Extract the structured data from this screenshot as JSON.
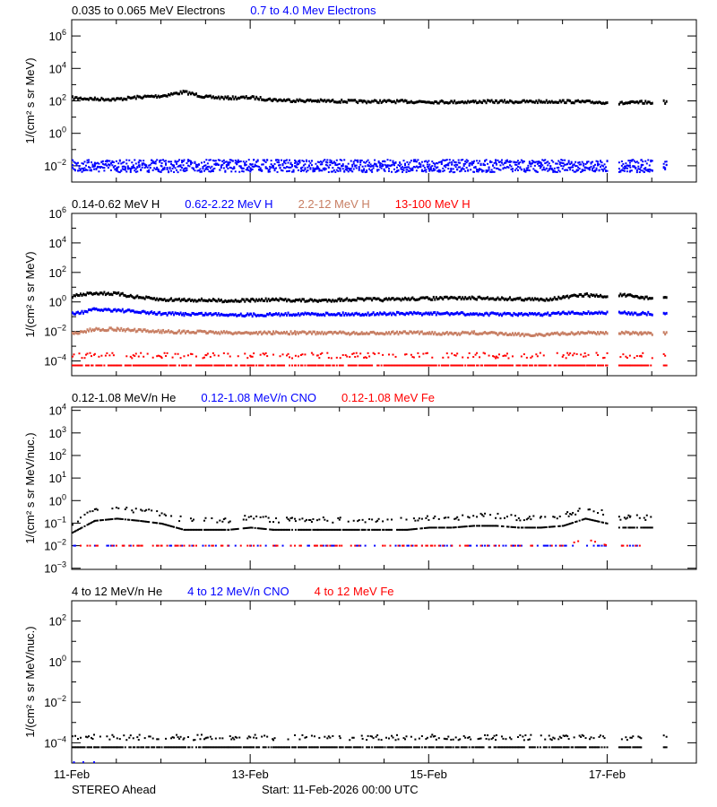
{
  "footer": {
    "spacecraft": "STEREO Ahead",
    "start": "Start: 11-Feb-2026 00:00 UTC"
  },
  "colors": {
    "black": "#000000",
    "blue": "#0000ff",
    "brown": "#c87f64",
    "red": "#ff0000"
  },
  "chart_data": [
    {
      "type": "scatter",
      "ylabel": "1/(cm² s sr MeV)",
      "yscale": "log",
      "ylim": [
        0.001,
        10000000.0
      ],
      "yticks": [
        1000000.0,
        10000.0,
        100.0,
        1.0,
        0.01
      ],
      "xlim": [
        "2026-02-11T00:00",
        "2026-02-18T00:00"
      ],
      "xticks": [
        "11-Feb",
        "13-Feb",
        "15-Feb",
        "17-Feb"
      ],
      "x": [
        "2026-02-11T00:00",
        "2026-02-11T06:00",
        "2026-02-11T12:00",
        "2026-02-11T18:00",
        "2026-02-12T00:00",
        "2026-02-12T06:00",
        "2026-02-12T12:00",
        "2026-02-12T18:00",
        "2026-02-13T00:00",
        "2026-02-13T06:00",
        "2026-02-13T12:00",
        "2026-02-13T18:00",
        "2026-02-14T00:00",
        "2026-02-14T06:00",
        "2026-02-14T12:00",
        "2026-02-14T18:00",
        "2026-02-15T00:00",
        "2026-02-15T06:00",
        "2026-02-15T12:00",
        "2026-02-15T18:00",
        "2026-02-16T00:00",
        "2026-02-16T06:00",
        "2026-02-16T12:00",
        "2026-02-16T18:00",
        "2026-02-17T00:00",
        "2026-02-17T01:00",
        "2026-02-17T03:00",
        "2026-02-17T06:00",
        "2026-02-17T09:00",
        "2026-02-17T12:00",
        "2026-02-17T13:00",
        "2026-02-17T15:00",
        "2026-02-17T16:00"
      ],
      "series": [
        {
          "name": "0.035 to 0.065 MeV Electrons",
          "color": "#000000",
          "style": "line",
          "values": [
            150,
            130,
            125,
            170,
            200,
            350,
            170,
            150,
            160,
            115,
            105,
            100,
            95,
            90,
            92,
            90,
            88,
            85,
            88,
            90,
            88,
            90,
            92,
            85,
            80,
            null,
            70,
            75,
            80,
            80,
            null,
            85,
            80
          ]
        },
        {
          "name": "0.7 to 4.0 Mev Electrons",
          "color": "#0000ff",
          "style": "scatter",
          "values": [
            0.011,
            0.011,
            0.011,
            0.011,
            0.011,
            0.011,
            0.011,
            0.011,
            0.011,
            0.011,
            0.011,
            0.011,
            0.011,
            0.011,
            0.011,
            0.011,
            0.011,
            0.011,
            0.011,
            0.011,
            0.011,
            0.011,
            0.011,
            0.011,
            0.011,
            null,
            0.011,
            0.011,
            0.011,
            0.011,
            null,
            0.011,
            0.011
          ]
        }
      ]
    },
    {
      "type": "scatter",
      "ylabel": "1/(cm² s sr MeV)",
      "yscale": "log",
      "ylim": [
        1e-05,
        1000000.0
      ],
      "yticks": [
        1000000.0,
        10000.0,
        100.0,
        1.0,
        0.01,
        0.0001
      ],
      "xlim": [
        "2026-02-11T00:00",
        "2026-02-18T00:00"
      ],
      "xticks": [
        "11-Feb",
        "13-Feb",
        "15-Feb",
        "17-Feb"
      ],
      "x": [
        "2026-02-11T00:00",
        "2026-02-11T06:00",
        "2026-02-11T12:00",
        "2026-02-11T18:00",
        "2026-02-12T00:00",
        "2026-02-12T06:00",
        "2026-02-12T12:00",
        "2026-02-12T18:00",
        "2026-02-13T00:00",
        "2026-02-13T06:00",
        "2026-02-13T12:00",
        "2026-02-13T18:00",
        "2026-02-14T00:00",
        "2026-02-14T06:00",
        "2026-02-14T12:00",
        "2026-02-14T18:00",
        "2026-02-15T00:00",
        "2026-02-15T06:00",
        "2026-02-15T12:00",
        "2026-02-15T18:00",
        "2026-02-16T00:00",
        "2026-02-16T06:00",
        "2026-02-16T12:00",
        "2026-02-16T18:00",
        "2026-02-17T00:00",
        "2026-02-17T01:00",
        "2026-02-17T03:00",
        "2026-02-17T06:00",
        "2026-02-17T09:00",
        "2026-02-17T12:00",
        "2026-02-17T13:00",
        "2026-02-17T15:00",
        "2026-02-17T16:00"
      ],
      "series": [
        {
          "name": "0.14-0.62 MeV H",
          "color": "#000000",
          "style": "line",
          "values": [
            2.5,
            4,
            3.5,
            2,
            1.4,
            1.4,
            1.3,
            1.2,
            1.3,
            1.4,
            1.3,
            1.2,
            1.4,
            1.5,
            1.4,
            1.6,
            1.7,
            1.8,
            1.8,
            1.7,
            1.6,
            1.4,
            2,
            3,
            2.2,
            null,
            3,
            2.5,
            2,
            1.8,
            null,
            2,
            2
          ]
        },
        {
          "name": "0.62-2.22 MeV H",
          "color": "#0000ff",
          "style": "line",
          "values": [
            0.15,
            0.3,
            0.28,
            0.2,
            0.16,
            0.15,
            0.15,
            0.14,
            0.13,
            0.14,
            0.15,
            0.15,
            0.15,
            0.15,
            0.16,
            0.16,
            0.16,
            0.16,
            0.15,
            0.15,
            0.14,
            0.14,
            0.17,
            0.18,
            0.18,
            null,
            0.18,
            0.17,
            0.16,
            0.16,
            null,
            0.15,
            0.15
          ]
        },
        {
          "name": "2.2-12 MeV H",
          "color": "#c87f64",
          "style": "line",
          "values": [
            0.007,
            0.014,
            0.014,
            0.011,
            0.01,
            0.009,
            0.009,
            0.008,
            0.008,
            0.008,
            0.008,
            0.008,
            0.008,
            0.007,
            0.008,
            0.008,
            0.008,
            0.007,
            0.008,
            0.007,
            0.006,
            0.006,
            0.007,
            0.008,
            0.008,
            null,
            0.008,
            0.008,
            0.007,
            0.007,
            null,
            0.007,
            0.007
          ]
        },
        {
          "name": "13-100 MeV H",
          "color": "#ff0000",
          "style": "quantized",
          "values": [
            0.0001,
            0.0001,
            0.0001,
            0.0001,
            0.0001,
            0.0001,
            0.0001,
            0.0001,
            0.0001,
            0.0001,
            0.0001,
            0.0001,
            0.0001,
            0.0001,
            0.0001,
            0.0001,
            0.0001,
            0.0001,
            0.0001,
            0.0001,
            0.0001,
            0.0001,
            0.0001,
            0.0001,
            0.0001,
            null,
            0.0001,
            0.0001,
            0.0001,
            0.0001,
            null,
            0.0001,
            0.0001
          ]
        }
      ]
    },
    {
      "type": "scatter",
      "ylabel": "1/(cm² s sr MeV/nuc.)",
      "yscale": "log",
      "ylim": [
        0.00089,
        14000.0
      ],
      "yticks": [
        10000.0,
        1000.0,
        100.0,
        10.0,
        1.0,
        0.1,
        0.01,
        0.001
      ],
      "xlim": [
        "2026-02-11T00:00",
        "2026-02-18T00:00"
      ],
      "xticks": [
        "11-Feb",
        "13-Feb",
        "15-Feb",
        "17-Feb"
      ],
      "x": [
        "2026-02-11T00:00",
        "2026-02-11T06:00",
        "2026-02-11T12:00",
        "2026-02-11T18:00",
        "2026-02-12T00:00",
        "2026-02-12T06:00",
        "2026-02-12T12:00",
        "2026-02-12T18:00",
        "2026-02-13T00:00",
        "2026-02-13T06:00",
        "2026-02-13T12:00",
        "2026-02-13T18:00",
        "2026-02-14T00:00",
        "2026-02-14T06:00",
        "2026-02-14T12:00",
        "2026-02-14T18:00",
        "2026-02-15T00:00",
        "2026-02-15T06:00",
        "2026-02-15T12:00",
        "2026-02-15T18:00",
        "2026-02-16T00:00",
        "2026-02-16T06:00",
        "2026-02-16T12:00",
        "2026-02-16T18:00",
        "2026-02-17T00:00",
        "2026-02-17T01:00",
        "2026-02-17T03:00",
        "2026-02-17T06:00",
        "2026-02-17T09:00",
        "2026-02-17T12:00",
        "2026-02-17T13:00",
        "2026-02-17T15:00",
        "2026-02-17T16:00"
      ],
      "series": [
        {
          "name": "0.12-1.08 MeV/n He",
          "color": "#000000",
          "style": "quantized",
          "values": [
            0.06,
            0.2,
            0.25,
            0.2,
            0.15,
            0.08,
            0.08,
            0.08,
            0.1,
            0.08,
            0.08,
            0.08,
            0.08,
            0.08,
            0.08,
            0.08,
            0.1,
            0.1,
            0.12,
            0.12,
            0.1,
            0.1,
            0.12,
            0.25,
            0.15,
            null,
            0.1,
            0.1,
            0.1,
            0.1,
            null,
            null,
            0.08
          ]
        },
        {
          "name": "0.12-1.08 MeV/n CNO",
          "color": "#0000ff",
          "style": "sparse",
          "values": [
            0.01,
            0.01,
            0.01,
            0.01,
            0.01,
            0.01,
            0.01,
            0.01,
            0.01,
            0.01,
            0.01,
            0.01,
            0.01,
            0.01,
            0.01,
            0.01,
            0.01,
            0.01,
            0.01,
            0.01,
            0.01,
            0.01,
            0.01,
            0.01,
            0.01,
            null,
            0.01,
            0.01,
            0.01,
            null,
            null,
            null,
            null
          ]
        },
        {
          "name": "0.12-1.08 MeV Fe",
          "color": "#ff0000",
          "style": "sparse",
          "values": [
            0.01,
            0.01,
            0.01,
            0.01,
            0.01,
            0.01,
            0.01,
            0.01,
            0.01,
            0.01,
            0.01,
            0.01,
            0.01,
            0.01,
            0.01,
            0.01,
            0.01,
            0.01,
            0.01,
            0.01,
            0.01,
            0.01,
            0.01,
            0.02,
            0.01,
            null,
            0.01,
            0.01,
            0.01,
            null,
            null,
            null,
            null
          ]
        }
      ]
    },
    {
      "type": "scatter",
      "ylabel": "1/(cm² s sr MeV/nuc.)",
      "yscale": "log",
      "ylim": [
        1e-05,
        1000.0
      ],
      "yticks": [
        100.0,
        1.0,
        0.01,
        0.0001
      ],
      "xlim": [
        "2026-02-11T00:00",
        "2026-02-18T00:00"
      ],
      "xticks": [
        "11-Feb",
        "13-Feb",
        "15-Feb",
        "17-Feb"
      ],
      "x": [
        "2026-02-11T00:00",
        "2026-02-11T06:00",
        "2026-02-11T12:00",
        "2026-02-11T18:00",
        "2026-02-12T00:00",
        "2026-02-12T06:00",
        "2026-02-12T12:00",
        "2026-02-12T18:00",
        "2026-02-13T00:00",
        "2026-02-13T06:00",
        "2026-02-13T12:00",
        "2026-02-13T18:00",
        "2026-02-14T00:00",
        "2026-02-14T06:00",
        "2026-02-14T12:00",
        "2026-02-14T18:00",
        "2026-02-15T00:00",
        "2026-02-15T06:00",
        "2026-02-15T12:00",
        "2026-02-15T18:00",
        "2026-02-16T00:00",
        "2026-02-16T06:00",
        "2026-02-16T12:00",
        "2026-02-16T18:00",
        "2026-02-17T00:00",
        "2026-02-17T01:00",
        "2026-02-17T03:00",
        "2026-02-17T06:00",
        "2026-02-17T09:00",
        "2026-02-17T12:00",
        "2026-02-17T13:00",
        "2026-02-17T15:00",
        "2026-02-17T16:00"
      ],
      "series": [
        {
          "name": "4 to 12 MeV/n He",
          "color": "#000000",
          "style": "quantized",
          "values": [
            0.0001,
            0.0001,
            0.0001,
            0.0001,
            0.0001,
            0.0001,
            0.0001,
            0.0001,
            0.0001,
            0.0001,
            0.0001,
            0.0001,
            0.0001,
            0.0001,
            0.0001,
            0.0001,
            0.0001,
            0.0001,
            0.0001,
            0.0001,
            0.0001,
            0.0001,
            0.0001,
            0.0001,
            0.0001,
            null,
            0.0001,
            0.0001,
            0.0001,
            null,
            null,
            0.0001,
            0.0001
          ]
        },
        {
          "name": "4 to 12 MeV/n CNO",
          "color": "#0000ff",
          "style": "rare",
          "values": [
            1.1e-05,
            1.1e-05,
            null,
            null,
            null,
            null,
            null,
            null,
            null,
            null,
            null,
            1.1e-05,
            null,
            null,
            null,
            null,
            null,
            null,
            null,
            null,
            null,
            null,
            1.1e-05,
            null,
            null,
            null,
            null,
            null,
            null,
            null,
            null,
            null,
            null
          ]
        },
        {
          "name": "4 to 12 MeV Fe",
          "color": "#ff0000",
          "style": "rare",
          "values": []
        }
      ]
    }
  ]
}
